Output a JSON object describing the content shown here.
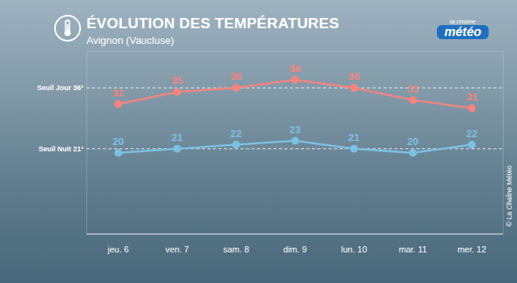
{
  "chart_data": {
    "type": "line",
    "title": "ÉVOLUTION DES TEMPÉRATURES",
    "subtitle": "Avignon (Vaucluse)",
    "logo": [
      "la chaîne",
      "météo"
    ],
    "credit": "© La Chaîne Météo",
    "categories": [
      "jeu. 6",
      "ven. 7",
      "sam. 8",
      "dim. 9",
      "lun. 10",
      "mar. 11",
      "mer. 12"
    ],
    "series": [
      {
        "color": "#f4847e",
        "marker": "circle",
        "values": [
          32,
          35,
          36,
          38,
          36,
          33,
          31
        ]
      },
      {
        "color": "#7cc0e3",
        "marker": "circle",
        "values": [
          20,
          21,
          22,
          23,
          21,
          20,
          22
        ]
      }
    ],
    "thresholds": [
      {
        "label": "Seuil Jour 36°",
        "value": 36
      },
      {
        "label": "Seuil Nuit 21°",
        "value": 21
      }
    ],
    "ylim": [
      0,
      45
    ],
    "tick_labels": "x",
    "data_labels": true,
    "grid": false
  }
}
